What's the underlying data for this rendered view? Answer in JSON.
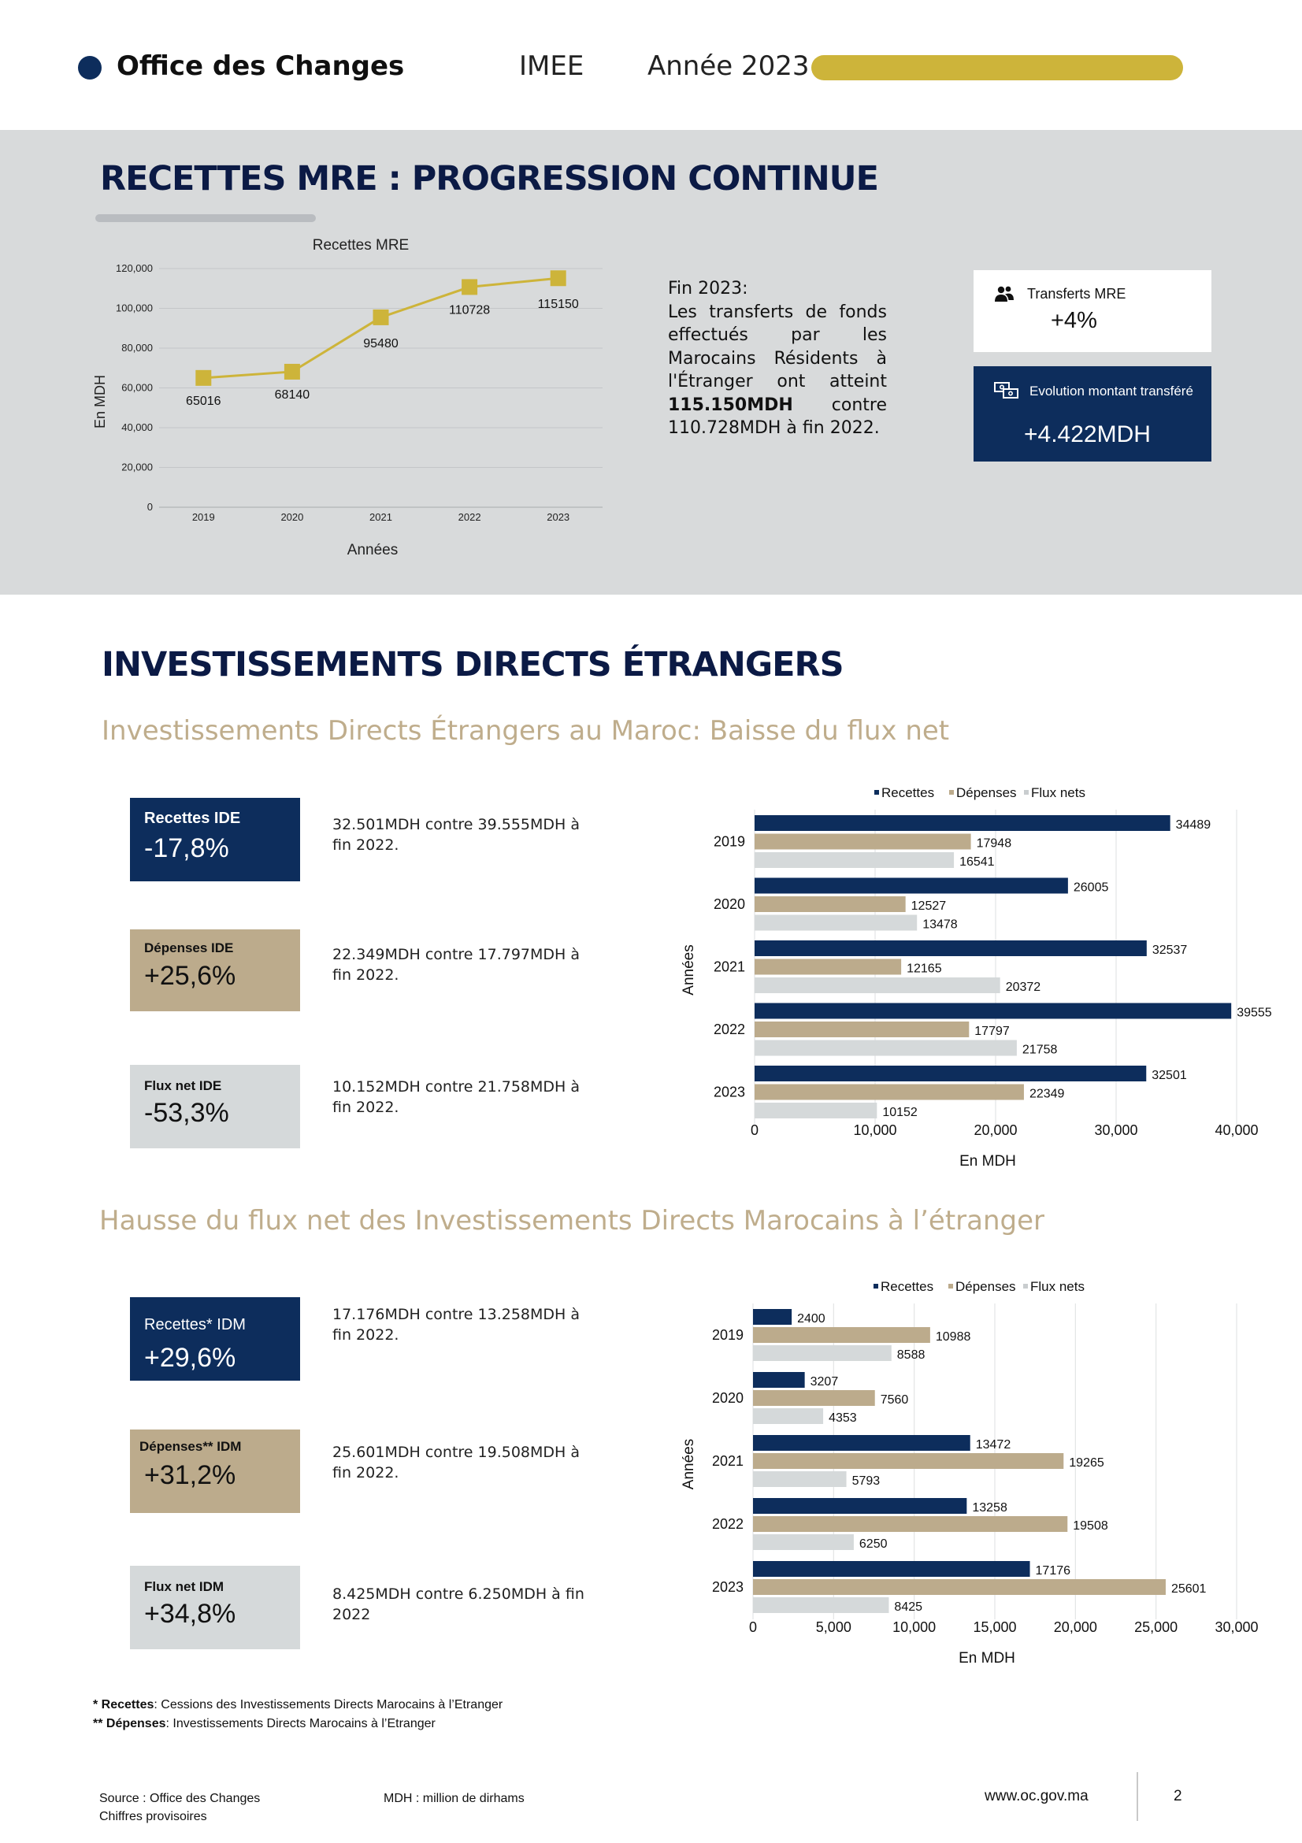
{
  "header": {
    "brand": "Office des Changes",
    "report": "IMEE",
    "year": "Année 2023"
  },
  "mre": {
    "title": "RECETTES MRE : PROGRESSION CONTINUE",
    "text_lead": "Fin 2023:",
    "text_body1": "Les transferts de fonds effectués par les Marocains Résidents à l'Étranger ont atteint",
    "text_strong": "115.150MDH",
    "text_body2": "contre 110.728MDH à fin 2022.",
    "card_transferts": {
      "label": "Transferts MRE",
      "value": "+4%"
    },
    "card_evolution": {
      "label": "Evolution montant transféré",
      "value": "+4.422MDH"
    }
  },
  "ide": {
    "title": "INVESTISSEMENTS DIRECTS ÉTRANGERS",
    "subtitle": "Investissements Directs Étrangers au Maroc: Baisse du flux net",
    "kpis": [
      {
        "label": "Recettes IDE",
        "value": "-17,8%",
        "desc": "32.501MDH contre 39.555MDH à fin 2022."
      },
      {
        "label": "Dépenses IDE",
        "value": "+25,6%",
        "desc": "22.349MDH contre 17.797MDH à fin 2022."
      },
      {
        "label": "Flux net IDE",
        "value": "-53,3%",
        "desc": "10.152MDH contre 21.758MDH à fin 2022."
      }
    ]
  },
  "idm": {
    "subtitle": "Hausse du flux net des Investissements Directs Marocains à l’étranger",
    "kpis": [
      {
        "label": "Recettes* IDM",
        "value": "+29,6%",
        "desc": "17.176MDH contre 13.258MDH à fin 2022."
      },
      {
        "label": "Dépenses** IDM",
        "value": "+31,2%",
        "desc": "25.601MDH contre 19.508MDH à fin 2022."
      },
      {
        "label": "Flux net IDM",
        "value": "+34,8%",
        "desc": "8.425MDH contre 6.250MDH à fin 2022"
      }
    ]
  },
  "footnotes": {
    "recettes_key": "* Recettes",
    "recettes_text": ": Cessions des Investissements Directs Marocains à l’Etranger",
    "depenses_key": "** Dépenses",
    "depenses_text": ": Investissements Directs Marocains à l’Etranger"
  },
  "footer": {
    "source": "Source : Office des Changes",
    "provisional": "Chiffres provisoires",
    "unit_note": "MDH : million de dirhams",
    "website": "www.oc.gov.ma",
    "page": "2"
  },
  "colors": {
    "navy": "#0d2d5c",
    "beige": "#bcab8c",
    "light_grey": "#d5d9da",
    "gold": "#cdb43a"
  },
  "icons": {
    "transferts": "users-icon",
    "evolution": "money-transfer-icon"
  },
  "chart_data": [
    {
      "type": "line",
      "title": "Recettes MRE",
      "xlabel": "Années",
      "ylabel": "En MDH",
      "x": [
        "2019",
        "2020",
        "2021",
        "2022",
        "2023"
      ],
      "series": [
        {
          "values": [
            65016,
            68140,
            95480,
            110728,
            115150
          ],
          "color": "#cdb43a"
        }
      ],
      "ylim": [
        0,
        120000
      ],
      "yticks": [
        "0",
        "20,000",
        "40,000",
        "60,000",
        "80,000",
        "100,000",
        "120,000"
      ],
      "grid": true
    },
    {
      "type": "bar",
      "orientation": "horizontal",
      "categories": [
        "2019",
        "2020",
        "2021",
        "2022",
        "2023"
      ],
      "series": [
        {
          "name": "Recettes",
          "values": [
            34489,
            26005,
            32537,
            39555,
            32501
          ],
          "color": "#0d2d5c"
        },
        {
          "name": "Dépenses",
          "values": [
            17948,
            12527,
            12165,
            17797,
            22349
          ],
          "color": "#bcab8c"
        },
        {
          "name": "Flux nets",
          "values": [
            16541,
            13478,
            20372,
            21758,
            10152
          ],
          "color": "#d5d9da"
        }
      ],
      "xlabel": "En MDH",
      "ylabel": "Années",
      "xlim": [
        0,
        40000
      ],
      "xticks": [
        "0",
        "10,000",
        "20,000",
        "30,000",
        "40,000"
      ],
      "legend": "top",
      "grid": true
    },
    {
      "type": "bar",
      "orientation": "horizontal",
      "categories": [
        "2019",
        "2020",
        "2021",
        "2022",
        "2023"
      ],
      "series": [
        {
          "name": "Recettes",
          "values": [
            2400,
            3207,
            13472,
            13258,
            17176
          ],
          "color": "#0d2d5c"
        },
        {
          "name": "Dépenses",
          "values": [
            10988,
            7560,
            19265,
            19508,
            25601
          ],
          "color": "#bcab8c"
        },
        {
          "name": "Flux nets",
          "values": [
            8588,
            4353,
            5793,
            6250,
            8425
          ],
          "color": "#d5d9da"
        }
      ],
      "xlabel": "En MDH",
      "ylabel": "Années",
      "xlim": [
        0,
        30000
      ],
      "xticks": [
        "0",
        "5,000",
        "10,000",
        "15,000",
        "20,000",
        "25,000",
        "30,000"
      ],
      "legend": "top",
      "grid": true
    }
  ]
}
